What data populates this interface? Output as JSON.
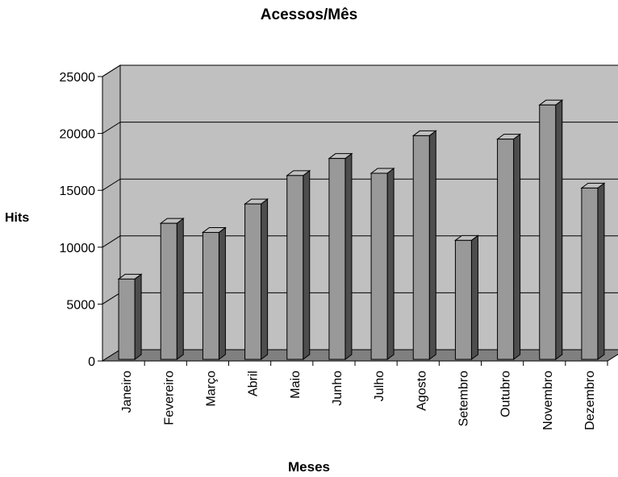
{
  "chart_data": {
    "type": "bar",
    "title": "Acessos/Mês",
    "xlabel": "Meses",
    "ylabel": "Hits",
    "categories": [
      "Janeiro",
      "Fevereiro",
      "Março",
      "Abril",
      "Maio",
      "Junho",
      "Julho",
      "Agosto",
      "Setembro",
      "Outubro",
      "Novembro",
      "Dezembro"
    ],
    "values": [
      7200,
      12100,
      11300,
      13800,
      16300,
      17800,
      16500,
      19800,
      10600,
      19500,
      22500,
      15200
    ],
    "ylim": [
      0,
      25000
    ],
    "yticks": [
      "0",
      "5000",
      "10000",
      "15000",
      "20000",
      "25000"
    ],
    "grid": true,
    "three_d": true,
    "colors": {
      "bar_front": "#999999",
      "bar_top": "#c0c0c0",
      "bar_side": "#4d4d4d",
      "wall": "#c0c0c0",
      "side_wall": "#b8b8b8",
      "floor": "#808080",
      "gridline": "#000000"
    }
  }
}
